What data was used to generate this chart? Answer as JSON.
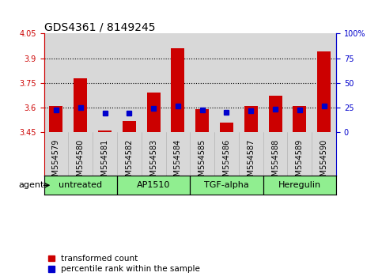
{
  "title": "GDS4361 / 8149245",
  "samples": [
    "GSM554579",
    "GSM554580",
    "GSM554581",
    "GSM554582",
    "GSM554583",
    "GSM554584",
    "GSM554585",
    "GSM554586",
    "GSM554587",
    "GSM554588",
    "GSM554589",
    "GSM554590"
  ],
  "red_values": [
    3.61,
    3.78,
    3.46,
    3.52,
    3.69,
    3.96,
    3.59,
    3.51,
    3.61,
    3.67,
    3.61,
    3.94
  ],
  "blue_values": [
    3.585,
    3.6,
    3.565,
    3.565,
    3.595,
    3.61,
    3.583,
    3.572,
    3.582,
    3.592,
    3.583,
    3.61
  ],
  "y_min": 3.45,
  "y_max": 4.05,
  "y_ticks_left": [
    3.45,
    3.6,
    3.75,
    3.9,
    4.05
  ],
  "y_ticks_right_vals": [
    0,
    25,
    50,
    75,
    100
  ],
  "y_ticks_right_labels": [
    "0",
    "25",
    "50",
    "75",
    "100%"
  ],
  "dotted_lines": [
    3.6,
    3.75,
    3.9
  ],
  "agent_groups": [
    {
      "label": "untreated",
      "start": 0,
      "end": 2
    },
    {
      "label": "AP1510",
      "start": 3,
      "end": 5
    },
    {
      "label": "TGF-alpha",
      "start": 6,
      "end": 8
    },
    {
      "label": "Heregulin",
      "start": 9,
      "end": 11
    }
  ],
  "bar_color": "#cc0000",
  "dot_color": "#0000cc",
  "bar_width": 0.55,
  "bg_color_plot": "#d8d8d8",
  "agent_bg_color": "#90ee90",
  "agent_label_color": "#000000",
  "left_axis_color": "#cc0000",
  "right_axis_color": "#0000cc",
  "title_fontsize": 10,
  "tick_fontsize": 7,
  "label_fontsize": 7,
  "legend_fontsize": 7.5,
  "agent_fontsize": 8
}
